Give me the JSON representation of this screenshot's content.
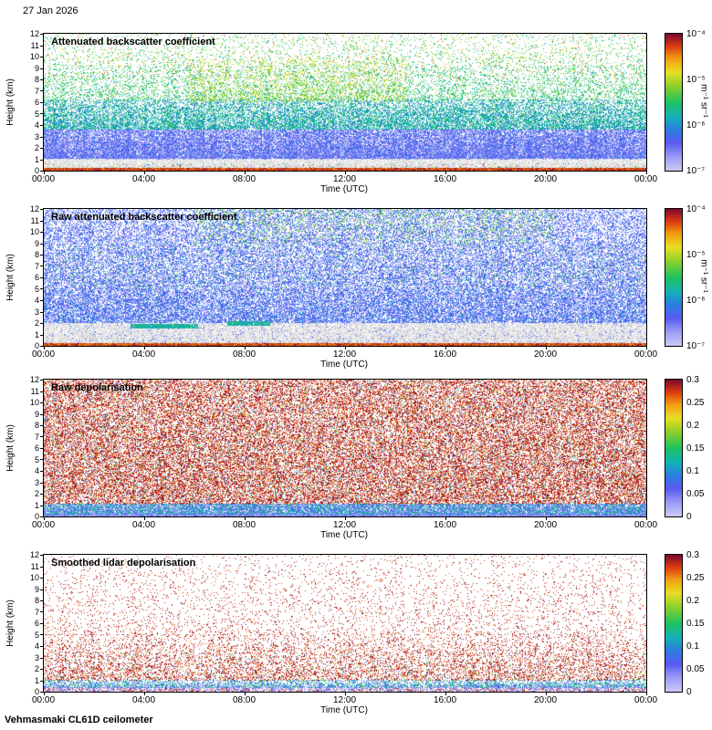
{
  "header": {
    "date": "27 Jan 2026"
  },
  "footer": {
    "label": "Vehmasmaki CL61D ceilometer"
  },
  "axes": {
    "xlabel": "Time (UTC)",
    "ylabel": "Height (km)",
    "x_ticks": [
      "00:00",
      "04:00",
      "08:00",
      "12:00",
      "16:00",
      "20:00",
      "00:00"
    ],
    "x_tick_hours": [
      0,
      4,
      8,
      12,
      16,
      20,
      24
    ],
    "y_ticks": [
      "12",
      "11",
      "10",
      "9",
      "8",
      "7",
      "6",
      "5",
      "4",
      "3",
      "2",
      "1",
      "0"
    ]
  },
  "colormap": {
    "stops": [
      [
        0.0,
        "#c9c9f5"
      ],
      [
        0.1,
        "#9b9bf7"
      ],
      [
        0.2,
        "#5a5af2"
      ],
      [
        0.3,
        "#2a7fe0"
      ],
      [
        0.4,
        "#14b4b4"
      ],
      [
        0.5,
        "#1fc35f"
      ],
      [
        0.62,
        "#8ed02a"
      ],
      [
        0.72,
        "#e8df25"
      ],
      [
        0.82,
        "#f29d13"
      ],
      [
        0.91,
        "#dd3c10"
      ],
      [
        1.0,
        "#7e0a32"
      ]
    ]
  },
  "chart_data": [
    {
      "type": "heatmap",
      "title": "Attenuated backscatter coefficient",
      "xlabel": "Time (UTC)",
      "ylabel": "Height (km)",
      "x_range_hours": [
        0,
        24
      ],
      "ylim_km": [
        0,
        12
      ],
      "colorbar": {
        "scale": "log",
        "range": [
          1e-07,
          0.0001
        ],
        "ticks": [
          "10⁻⁴",
          "10⁻⁵",
          "10⁻⁶",
          "10⁻⁷"
        ],
        "unit": "m⁻¹ sr⁻¹"
      },
      "description": "Dense blue backscatter below ~4 km grading to teal/green at 4-6 km, sparse green-yellow speckle 6-12 km (brighter 06:00-14:00), grey noise band below 1 km, dark red surface return at 0 km.",
      "layers": [
        {
          "y": [
            1.0,
            3.6
          ],
          "d": [
            0.95,
            0.7
          ],
          "t": [
            0.05,
            0.3
          ],
          "streak": 0.35
        },
        {
          "y": [
            3.6,
            6.2
          ],
          "d": [
            0.72,
            0.4
          ],
          "t": [
            0.28,
            0.52
          ],
          "streak": 0.45
        },
        {
          "y": [
            6.2,
            9.2
          ],
          "d": [
            0.3,
            0.15
          ],
          "t": [
            0.38,
            0.62
          ],
          "streak": 0.55
        },
        {
          "y": [
            9.2,
            12.0
          ],
          "d": [
            0.13,
            0.07
          ],
          "t": [
            0.4,
            0.68
          ],
          "streak": 0.55
        },
        {
          "y": [
            6.0,
            9.8
          ],
          "d": [
            0.2,
            0.1
          ],
          "t": [
            0.58,
            0.74
          ],
          "x": [
            0.24,
            0.6
          ],
          "streak": 0.6
        },
        {
          "y": [
            8.0,
            12.0
          ],
          "d": [
            0.015,
            0.01
          ],
          "t": [
            0.72,
            0.95
          ],
          "streak": 0.3
        },
        {
          "y": [
            0.18,
            1.0
          ],
          "d": [
            0.88,
            0.82
          ],
          "grey": true,
          "streak": 0.15
        },
        {
          "y": [
            0.18,
            0.6
          ],
          "d": [
            0.12,
            0.06
          ],
          "t": [
            0.0,
            1.0
          ],
          "streak": 0.2
        },
        {
          "y": [
            0.0,
            0.18
          ],
          "d": [
            1.0,
            1.0
          ],
          "t": [
            0.82,
            1.0
          ],
          "streak": 0
        }
      ]
    },
    {
      "type": "heatmap",
      "title": "Raw attenuated backscatter coefficient",
      "xlabel": "Time (UTC)",
      "ylabel": "Height (km)",
      "x_range_hours": [
        0,
        24
      ],
      "ylim_km": [
        0,
        12
      ],
      "colorbar": {
        "scale": "log",
        "range": [
          1e-07,
          0.0001
        ],
        "ticks": [
          "10⁻⁴",
          "10⁻⁵",
          "10⁻⁶",
          "10⁻⁷"
        ],
        "unit": "m⁻¹ sr⁻¹"
      },
      "description": "Uniform blue noise 2-12 km, grey molecular/noise band below 2 km, green cloud/aerosol streaks near 2 km around 03:30-06:00 and 07:30-09:00, green-yellow speckle 9-12 km mid-day, dark red surface line.",
      "layers": [
        {
          "y": [
            2.0,
            12.0
          ],
          "d": [
            0.6,
            0.4
          ],
          "t": [
            0.08,
            0.32
          ],
          "streak": 0.35
        },
        {
          "y": [
            2.0,
            5.0
          ],
          "d": [
            0.25,
            0.1
          ],
          "t": [
            0.15,
            0.38
          ],
          "streak": 0.35
        },
        {
          "y": [
            9.0,
            12.0
          ],
          "d": [
            0.1,
            0.16
          ],
          "t": [
            0.4,
            0.7
          ],
          "x": [
            0.25,
            0.85
          ],
          "streak": 0.5
        },
        {
          "y": [
            5.0,
            9.0
          ],
          "d": [
            0.05,
            0.04
          ],
          "t": [
            0.38,
            0.6
          ],
          "streak": 0.4
        },
        {
          "y": [
            0.2,
            2.0
          ],
          "d": [
            0.92,
            0.8
          ],
          "grey": true,
          "streak": 0.15
        },
        {
          "y": [
            0.3,
            2.0
          ],
          "d": [
            0.1,
            0.05
          ],
          "t": [
            0.05,
            0.3
          ],
          "streak": 0.2
        },
        {
          "y": [
            1.55,
            1.85
          ],
          "d": [
            0.95,
            0.95
          ],
          "t": [
            0.33,
            0.5
          ],
          "x": [
            0.145,
            0.255
          ],
          "streak": 0.1
        },
        {
          "y": [
            1.8,
            2.1
          ],
          "d": [
            0.95,
            0.95
          ],
          "t": [
            0.33,
            0.5
          ],
          "x": [
            0.305,
            0.375
          ],
          "streak": 0.1
        },
        {
          "y": [
            0.0,
            0.2
          ],
          "d": [
            1.0,
            1.0
          ],
          "t": [
            0.8,
            1.0
          ],
          "streak": 0
        }
      ]
    },
    {
      "type": "heatmap",
      "title": "Raw depolarisation",
      "xlabel": "Time (UTC)",
      "ylabel": "Height (km)",
      "x_range_hours": [
        0,
        24
      ],
      "ylim_km": [
        0,
        12
      ],
      "colorbar": {
        "scale": "linear",
        "range": [
          0,
          0.3
        ],
        "ticks": [
          "0.3",
          "0.25",
          "0.2",
          "0.15",
          "0.1",
          "0.05",
          "0"
        ],
        "unit": ""
      },
      "description": "Dense dark-red/purple noise (depolarisation near 0.25-0.3) everywhere above 1 km with scattered rainbow speckle; low-depolarisation cyan/blue band (<0.1) below 1 km.",
      "layers": [
        {
          "y": [
            1.1,
            12.0
          ],
          "d": [
            0.48,
            0.4
          ],
          "t": [
            0.88,
            1.0
          ],
          "streak": 0.3
        },
        {
          "y": [
            1.1,
            12.0
          ],
          "d": [
            0.09,
            0.07
          ],
          "t": [
            0.0,
            0.85
          ],
          "streak": 0.3
        },
        {
          "y": [
            0.15,
            1.1
          ],
          "d": [
            0.95,
            0.75
          ],
          "t": [
            0.02,
            0.5
          ],
          "streak": 0.1
        },
        {
          "y": [
            0.0,
            0.15
          ],
          "d": [
            1.0,
            1.0
          ],
          "t": [
            0.0,
            0.25
          ],
          "streak": 0
        }
      ]
    },
    {
      "type": "heatmap",
      "title": "Smoothed lidar depolarisation",
      "xlabel": "Time (UTC)",
      "ylabel": "Height (km)",
      "x_range_hours": [
        0,
        24
      ],
      "ylim_km": [
        0,
        12
      ],
      "colorbar": {
        "scale": "linear",
        "range": [
          0,
          0.3
        ],
        "ticks": [
          "0.3",
          "0.25",
          "0.2",
          "0.15",
          "0.1",
          "0.05",
          "0"
        ],
        "unit": ""
      },
      "description": "Sparse purple speckle aloft with strong vertical streaks, denser between 1-5 km; dense low-depolarisation band (cyan/green/blue, <0.1) below 1 km with scattered orange/red surface returns.",
      "layers": [
        {
          "y": [
            5.0,
            12.0
          ],
          "d": [
            0.1,
            0.04
          ],
          "t": [
            0.88,
            1.0
          ],
          "streak": 0.75
        },
        {
          "y": [
            1.0,
            5.0
          ],
          "d": [
            0.34,
            0.12
          ],
          "t": [
            0.88,
            1.0
          ],
          "streak": 0.75
        },
        {
          "y": [
            1.0,
            3.5
          ],
          "d": [
            0.06,
            0.02
          ],
          "t": [
            0.1,
            0.8
          ],
          "streak": 0.6
        },
        {
          "y": [
            0.35,
            1.0
          ],
          "d": [
            0.8,
            0.35
          ],
          "t": [
            0.05,
            0.55
          ],
          "streak": 0.25
        },
        {
          "y": [
            0.0,
            0.35
          ],
          "d": [
            0.5,
            0.5
          ],
          "t": [
            0.0,
            0.2
          ],
          "streak": 0.2
        },
        {
          "y": [
            0.0,
            0.3
          ],
          "d": [
            0.25,
            0.15
          ],
          "t": [
            0.85,
            1.0
          ],
          "streak": 0.2
        }
      ]
    }
  ]
}
